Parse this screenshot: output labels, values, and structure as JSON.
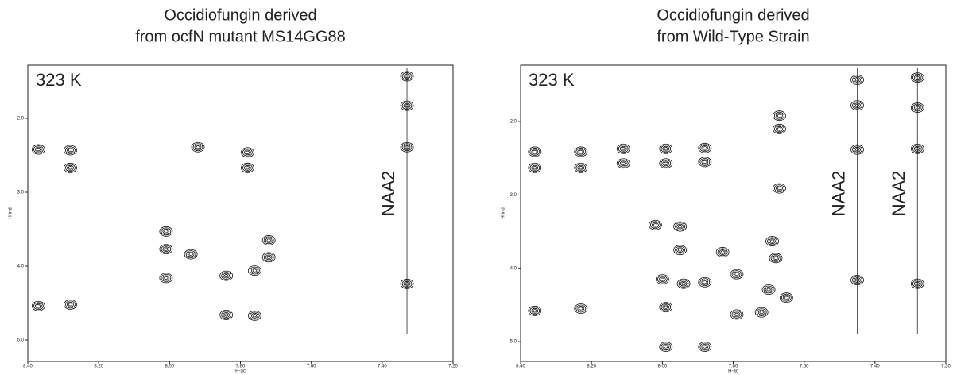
{
  "chart_data": [
    {
      "type": "scatter",
      "title": [
        "Occidiofungin derived",
        "from ocfN mutant MS14GG88"
      ],
      "x_label": "H-ac",
      "y_label": "H-ind",
      "temperature": "323 K",
      "xlim": [
        8.4,
        7.2
      ],
      "xticks": [
        {
          "value": 8.4,
          "label": "8.40"
        },
        {
          "value": 8.2,
          "label": "8.20"
        },
        {
          "value": 8.0,
          "label": "8.00"
        },
        {
          "value": 7.8,
          "label": "7.80"
        },
        {
          "value": 7.6,
          "label": "7.60"
        },
        {
          "value": 7.4,
          "label": "7.40"
        },
        {
          "value": 7.2,
          "label": "7.20"
        }
      ],
      "ylim": [
        1.28,
        5.29
      ],
      "yticks": [
        {
          "value": 2,
          "label": "2.0"
        },
        {
          "value": 3,
          "label": "3.0"
        },
        {
          "value": 4,
          "label": "4.0"
        },
        {
          "value": 5,
          "label": "5.0"
        }
      ],
      "vlines": [
        7.33
      ],
      "vline_labels": [
        "NAA2"
      ],
      "x": [
        7.33,
        7.33,
        7.33,
        7.33,
        8.37,
        8.28,
        8.28,
        7.78,
        7.78,
        7.92,
        8.01,
        7.72,
        7.72,
        7.76,
        8.01,
        7.94,
        8.01,
        7.84,
        8.37,
        8.28,
        7.84,
        7.76
      ],
      "values": [
        1.43,
        1.83,
        2.39,
        4.24,
        2.42,
        2.43,
        2.67,
        2.46,
        2.67,
        2.39,
        3.53,
        3.65,
        3.88,
        4.06,
        3.77,
        3.84,
        4.16,
        4.13,
        4.54,
        4.52,
        4.66,
        4.67
      ]
    },
    {
      "type": "scatter",
      "title": [
        "Occidiofungin derived",
        "from Wild-Type Strain"
      ],
      "x_label": "H-ac",
      "y_label": "H-ind",
      "temperature": "323 K",
      "xlim": [
        8.4,
        7.2
      ],
      "xticks": [
        {
          "value": 8.4,
          "label": "8.40"
        },
        {
          "value": 8.2,
          "label": "8.20"
        },
        {
          "value": 8.0,
          "label": "8.00"
        },
        {
          "value": 7.8,
          "label": "7.80"
        },
        {
          "value": 7.6,
          "label": "7.60"
        },
        {
          "value": 7.4,
          "label": "7.40"
        },
        {
          "value": 7.2,
          "label": "7.20"
        }
      ],
      "ylim": [
        1.23,
        5.27
      ],
      "yticks": [
        {
          "value": 2,
          "label": "2.0"
        },
        {
          "value": 3,
          "label": "3.0"
        },
        {
          "value": 4,
          "label": "4.0"
        },
        {
          "value": 5,
          "label": "5.0"
        }
      ],
      "vlines": [
        7.45,
        7.28
      ],
      "vline_labels": [
        "NAA2",
        "NAA2"
      ],
      "x": [
        7.45,
        7.45,
        7.45,
        7.45,
        7.28,
        7.28,
        7.28,
        7.28,
        8.36,
        8.36,
        8.23,
        8.23,
        8.11,
        8.11,
        7.99,
        7.99,
        7.88,
        7.88,
        7.67,
        7.67,
        7.67,
        8.02,
        7.95,
        7.95,
        7.83,
        7.69,
        7.68,
        8.0,
        7.94,
        7.88,
        7.79,
        7.7,
        7.65,
        8.36,
        8.23,
        7.99,
        7.79,
        7.72,
        7.99,
        7.88
      ],
      "values": [
        1.43,
        1.78,
        2.38,
        4.16,
        1.4,
        1.81,
        2.37,
        4.21,
        2.41,
        2.63,
        2.41,
        2.63,
        2.37,
        2.57,
        2.37,
        2.57,
        2.36,
        2.55,
        1.92,
        2.1,
        2.91,
        3.41,
        3.43,
        3.75,
        3.78,
        3.63,
        3.86,
        4.15,
        4.21,
        4.19,
        4.08,
        4.29,
        4.4,
        4.58,
        4.55,
        4.53,
        4.63,
        4.6,
        5.07,
        5.07
      ]
    }
  ]
}
